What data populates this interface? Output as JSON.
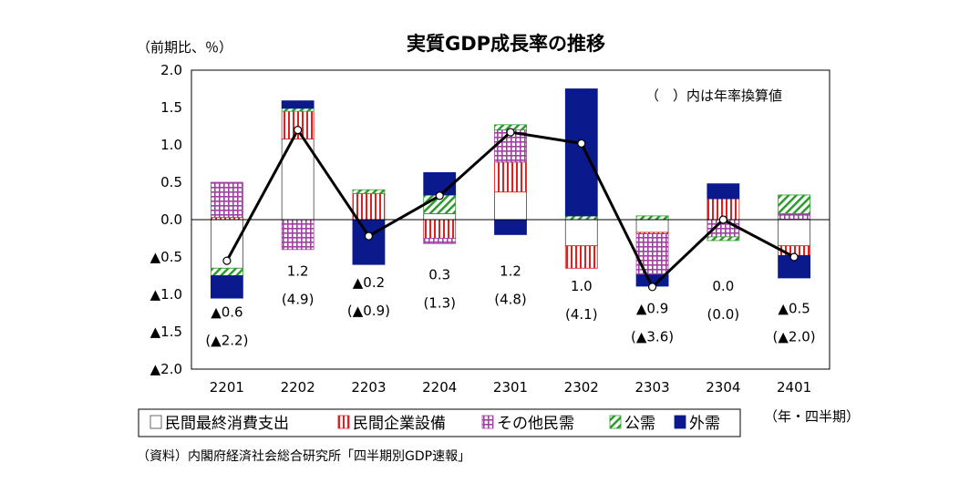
{
  "title": "実質GDP成長率の推移",
  "unit_label": "（前期比、％）",
  "x_unit_label": "（年・四半期）",
  "annotation": "（　）内は年率換算値",
  "source": "（資料）内閣府経済社会総合研究所「四半期別GDP速報」",
  "chart_data": {
    "type": "bar",
    "stacked": true,
    "categories": [
      "2201",
      "2202",
      "2203",
      "2204",
      "2301",
      "2302",
      "2303",
      "2304",
      "2401"
    ],
    "ylim": [
      -2.0,
      2.0
    ],
    "yticks": [
      "2.0",
      "1.5",
      "1.0",
      "0.5",
      "0.0",
      "▲0.5",
      "▲1.0",
      "▲1.5",
      "▲2.0"
    ],
    "grid": false,
    "legend_position": "bottom",
    "series": [
      {
        "name": "民間最終消費支出",
        "pattern": "plain",
        "color": "#ffffff",
        "values": [
          -0.65,
          1.08,
          0.0,
          0.08,
          0.37,
          -0.35,
          -0.17,
          0.0,
          -0.35
        ]
      },
      {
        "name": "民間企業設備",
        "pattern": "vstripe",
        "color": "#e02020",
        "values": [
          0.03,
          0.37,
          0.35,
          -0.25,
          0.4,
          -0.3,
          -0.02,
          0.28,
          -0.13
        ]
      },
      {
        "name": "その他民需",
        "pattern": "grid",
        "color": "#a040a0",
        "values": [
          0.47,
          -0.4,
          0.0,
          -0.07,
          0.43,
          0.0,
          -0.55,
          -0.23,
          0.08
        ]
      },
      {
        "name": "公需",
        "pattern": "diag",
        "color": "#2a9d2a",
        "values": [
          -0.1,
          0.04,
          0.05,
          0.25,
          0.07,
          0.05,
          0.05,
          -0.05,
          0.25
        ]
      },
      {
        "name": "外需",
        "pattern": "solid",
        "color": "#0a1a8c",
        "values": [
          -0.3,
          0.1,
          -0.6,
          0.3,
          -0.2,
          1.7,
          -0.15,
          0.2,
          -0.3
        ]
      }
    ],
    "line": {
      "name": "実質GDP成長率",
      "values": [
        -0.55,
        1.2,
        -0.22,
        0.32,
        1.17,
        1.02,
        -0.9,
        0.0,
        -0.5
      ]
    },
    "labels_qoq": [
      "▲0.6",
      "1.2",
      "▲0.2",
      "0.3",
      "1.2",
      "1.0",
      "▲0.9",
      "0.0",
      "▲0.5"
    ],
    "labels_annual": [
      "(▲2.2)",
      "(4.9)",
      "(▲0.9)",
      "(1.3)",
      "(4.8)",
      "(4.1)",
      "(▲3.6)",
      "(0.0)",
      "(▲2.0)"
    ],
    "label_anchor": [
      -1.3,
      -0.75,
      -0.9,
      -0.8,
      -0.75,
      -0.95,
      -1.25,
      -0.95,
      -1.25
    ]
  }
}
